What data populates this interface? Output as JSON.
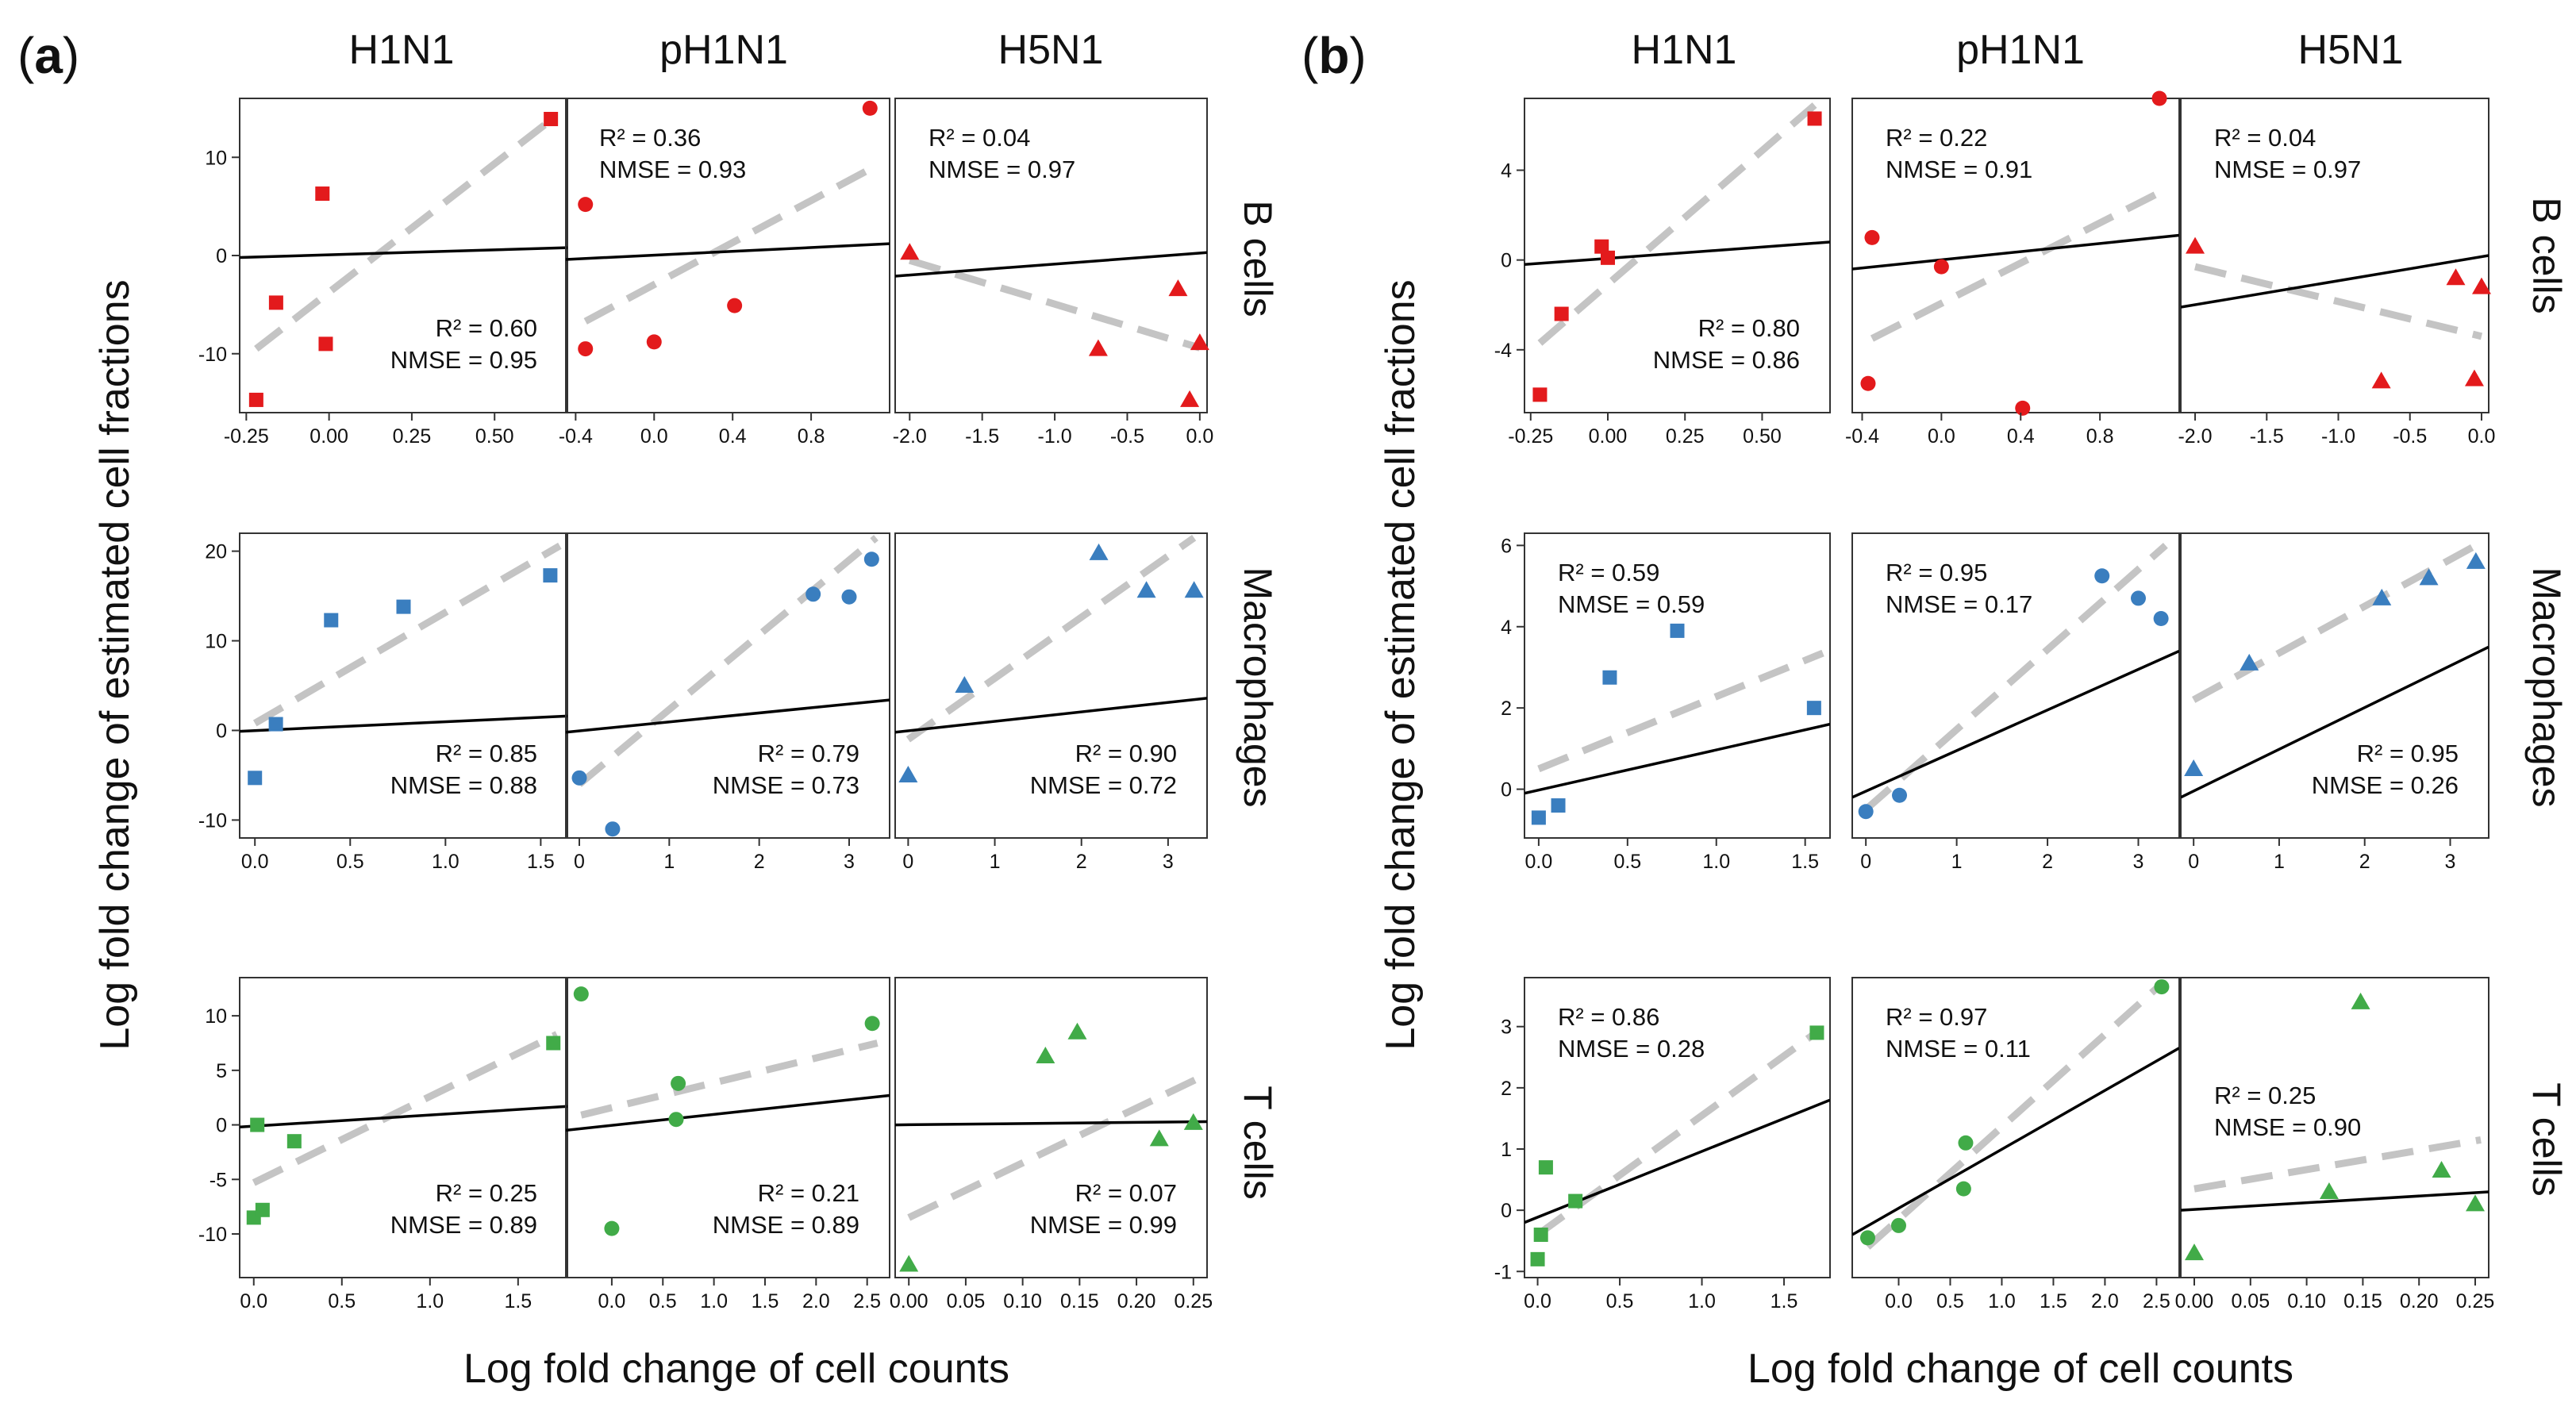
{
  "figure": {
    "panels": [
      {
        "label_open": "(",
        "label_letter": "a",
        "label_close": ")"
      },
      {
        "label_open": "(",
        "label_letter": "b",
        "label_close": ")"
      }
    ],
    "column_titles": [
      "H1N1",
      "pH1N1",
      "H5N1"
    ],
    "row_titles": [
      "B cells",
      "Macrophages",
      "T cells"
    ],
    "xlabel": "Log fold change of cell counts",
    "ylabel": "Log fold change of estimated cell fractions",
    "colors": {
      "B cells": "#e31a1c",
      "Macrophages": "#3a7ebf",
      "T cells": "#41ab48"
    },
    "line_colors": {
      "fit": "#000000",
      "reference": "#c4c4c4"
    },
    "markers": {
      "H1N1": "square",
      "pH1N1": "circle",
      "H5N1": "triangle"
    }
  },
  "chart_data": [
    {
      "type": "scatter",
      "panel": "a",
      "col": 0,
      "row": 0,
      "xlim": [
        -0.27,
        0.72
      ],
      "ylim": [
        -16,
        16
      ],
      "xticks": [
        -0.25,
        0,
        0.25,
        0.5
      ],
      "xtick_labels": [
        "-0.25",
        "0.00",
        "0.25",
        "0.50"
      ],
      "yticks": [
        -10,
        0,
        10
      ],
      "ytick_labels": [
        "-10",
        "0",
        "10"
      ],
      "points": [
        [
          -0.22,
          -14.7
        ],
        [
          -0.16,
          -4.8
        ],
        [
          -0.02,
          6.3
        ],
        [
          -0.01,
          -9.0
        ],
        [
          0.67,
          13.9
        ]
      ],
      "fit": [
        [
          -0.27,
          -0.2
        ],
        [
          0.72,
          0.8
        ]
      ],
      "ref": [
        [
          -0.22,
          -9.5
        ],
        [
          0.67,
          13.8
        ]
      ],
      "r2": "R² = 0.60",
      "nmse": "NMSE = 0.95",
      "annot_pos": "bottom-right"
    },
    {
      "type": "scatter",
      "panel": "a",
      "col": 1,
      "row": 0,
      "xlim": [
        -0.45,
        1.2
      ],
      "ylim": [
        -16,
        16
      ],
      "xticks": [
        -0.4,
        0,
        0.4,
        0.8
      ],
      "xtick_labels": [
        "-0.4",
        "0.0",
        "0.4",
        "0.8"
      ],
      "points": [
        [
          -0.35,
          5.2
        ],
        [
          -0.35,
          -9.5
        ],
        [
          0.0,
          -8.8
        ],
        [
          0.41,
          -5.1
        ],
        [
          1.1,
          15.0
        ]
      ],
      "fit": [
        [
          -0.45,
          -0.4
        ],
        [
          1.2,
          1.2
        ]
      ],
      "ref": [
        [
          -0.35,
          -6.7
        ],
        [
          1.1,
          8.8
        ]
      ],
      "r2": "R² = 0.36",
      "nmse": "NMSE = 0.93",
      "annot_pos": "top-left"
    },
    {
      "type": "scatter",
      "panel": "a",
      "col": 2,
      "row": 0,
      "xlim": [
        -2.1,
        0.05
      ],
      "ylim": [
        -16,
        16
      ],
      "xticks": [
        -2.0,
        -1.5,
        -1.0,
        -0.5,
        0.0
      ],
      "xtick_labels": [
        "-2.0",
        "-1.5",
        "-1.0",
        "-0.5",
        "0.0"
      ],
      "points": [
        [
          -2.0,
          0.3
        ],
        [
          -0.7,
          -9.5
        ],
        [
          -0.15,
          -3.4
        ],
        [
          0.0,
          -8.9
        ],
        [
          -0.07,
          -14.7
        ]
      ],
      "fit": [
        [
          -2.1,
          -2.1
        ],
        [
          0.05,
          0.3
        ]
      ],
      "ref": [
        [
          -2.0,
          -0.5
        ],
        [
          0.0,
          -9.4
        ]
      ],
      "r2": "R² = 0.04",
      "nmse": "NMSE = 0.97",
      "annot_pos": "top-left"
    },
    {
      "type": "scatter",
      "panel": "a",
      "col": 0,
      "row": 1,
      "xlim": [
        -0.08,
        1.64
      ],
      "ylim": [
        -12,
        22
      ],
      "xticks": [
        0,
        0.5,
        1.0,
        1.5
      ],
      "xtick_labels": [
        "0.0",
        "0.5",
        "1.0",
        "1.5"
      ],
      "yticks": [
        -10,
        0,
        10,
        20
      ],
      "ytick_labels": [
        "-10",
        "0",
        "10",
        "20"
      ],
      "points": [
        [
          0.0,
          -5.3
        ],
        [
          0.11,
          0.7
        ],
        [
          0.4,
          12.3
        ],
        [
          0.78,
          13.8
        ],
        [
          1.55,
          17.3
        ]
      ],
      "fit": [
        [
          -0.08,
          -0.1
        ],
        [
          1.64,
          1.6
        ]
      ],
      "ref": [
        [
          0.0,
          0.8
        ],
        [
          1.6,
          20.6
        ]
      ],
      "r2": "R² = 0.85",
      "nmse": "NMSE = 0.88",
      "annot_pos": "bottom-right"
    },
    {
      "type": "scatter",
      "panel": "a",
      "col": 1,
      "row": 1,
      "xlim": [
        -0.15,
        3.45
      ],
      "ylim": [
        -12,
        22
      ],
      "xticks": [
        0,
        1,
        2,
        3
      ],
      "xtick_labels": [
        "0",
        "1",
        "2",
        "3"
      ],
      "points": [
        [
          0.0,
          -5.3
        ],
        [
          0.37,
          -11.0
        ],
        [
          2.6,
          15.2
        ],
        [
          3.0,
          14.9
        ],
        [
          3.25,
          19.1
        ]
      ],
      "fit": [
        [
          -0.15,
          -0.2
        ],
        [
          3.45,
          3.4
        ]
      ],
      "ref": [
        [
          0.0,
          -6.0
        ],
        [
          3.3,
          21.5
        ]
      ],
      "r2": "R² = 0.79",
      "nmse": "NMSE = 0.73",
      "annot_pos": "bottom-right"
    },
    {
      "type": "scatter",
      "panel": "a",
      "col": 2,
      "row": 1,
      "xlim": [
        -0.15,
        3.45
      ],
      "ylim": [
        -12,
        22
      ],
      "xticks": [
        0,
        1,
        2,
        3
      ],
      "xtick_labels": [
        "0",
        "1",
        "2",
        "3"
      ],
      "points": [
        [
          0.0,
          -5.0
        ],
        [
          0.65,
          5.0
        ],
        [
          2.2,
          19.8
        ],
        [
          2.75,
          15.6
        ],
        [
          3.3,
          15.6
        ]
      ],
      "fit": [
        [
          -0.15,
          -0.2
        ],
        [
          3.45,
          3.6
        ]
      ],
      "ref": [
        [
          0.0,
          -1.0
        ],
        [
          3.3,
          21.5
        ]
      ],
      "r2": "R² = 0.90",
      "nmse": "NMSE = 0.72",
      "annot_pos": "bottom-right"
    },
    {
      "type": "scatter",
      "panel": "a",
      "col": 0,
      "row": 2,
      "xlim": [
        -0.08,
        1.78
      ],
      "ylim": [
        -14,
        13.5
      ],
      "xticks": [
        0,
        0.5,
        1.0,
        1.5
      ],
      "xtick_labels": [
        "0.0",
        "0.5",
        "1.0",
        "1.5"
      ],
      "yticks": [
        -10,
        -5,
        0,
        5,
        10
      ],
      "ytick_labels": [
        "-10",
        "-5",
        "0",
        "5",
        "10"
      ],
      "points": [
        [
          0.02,
          0.0
        ],
        [
          0.0,
          -8.5
        ],
        [
          0.05,
          -7.8
        ],
        [
          0.23,
          -1.5
        ],
        [
          1.7,
          7.5
        ]
      ],
      "fit": [
        [
          -0.08,
          -0.2
        ],
        [
          1.78,
          1.7
        ]
      ],
      "ref": [
        [
          0.0,
          -5.3
        ],
        [
          1.72,
          8.3
        ]
      ],
      "r2": "R² = 0.25",
      "nmse": "NMSE = 0.89",
      "annot_pos": "bottom-right"
    },
    {
      "type": "scatter",
      "panel": "a",
      "col": 1,
      "row": 2,
      "xlim": [
        -0.45,
        2.72
      ],
      "ylim": [
        -14,
        13.5
      ],
      "xticks": [
        0,
        0.5,
        1.0,
        1.5,
        2.0,
        2.5
      ],
      "xtick_labels": [
        "0.0",
        "0.5",
        "1.0",
        "1.5",
        "2.0",
        "2.5"
      ],
      "points": [
        [
          -0.3,
          12.0
        ],
        [
          0.0,
          -9.5
        ],
        [
          0.65,
          3.8
        ],
        [
          0.63,
          0.5
        ],
        [
          2.55,
          9.3
        ]
      ],
      "fit": [
        [
          -0.45,
          -0.5
        ],
        [
          2.72,
          2.7
        ]
      ],
      "ref": [
        [
          -0.3,
          0.9
        ],
        [
          2.6,
          7.5
        ]
      ],
      "r2": "R² = 0.21",
      "nmse": "NMSE = 0.89",
      "annot_pos": "bottom-right"
    },
    {
      "type": "scatter",
      "panel": "a",
      "col": 2,
      "row": 2,
      "xlim": [
        -0.012,
        0.262
      ],
      "ylim": [
        -14,
        13.5
      ],
      "xticks": [
        0.0,
        0.05,
        0.1,
        0.15,
        0.2,
        0.25
      ],
      "xtick_labels": [
        "0.00",
        "0.05",
        "0.10",
        "0.15",
        "0.20",
        "0.25"
      ],
      "points": [
        [
          0.0,
          -12.8
        ],
        [
          0.12,
          6.3
        ],
        [
          0.148,
          8.5
        ],
        [
          0.22,
          -1.3
        ],
        [
          0.25,
          0.2
        ]
      ],
      "fit": [
        [
          -0.012,
          0.0
        ],
        [
          0.262,
          0.3
        ]
      ],
      "ref": [
        [
          0.0,
          -8.5
        ],
        [
          0.255,
          4.3
        ]
      ],
      "r2": "R² = 0.07",
      "nmse": "NMSE = 0.99",
      "annot_pos": "bottom-right"
    },
    {
      "type": "scatter",
      "panel": "b",
      "col": 0,
      "row": 0,
      "xlim": [
        -0.27,
        0.72
      ],
      "ylim": [
        -6.8,
        7.2
      ],
      "xticks": [
        -0.25,
        0,
        0.25,
        0.5
      ],
      "xtick_labels": [
        "-0.25",
        "0.00",
        "0.25",
        "0.50"
      ],
      "yticks": [
        -4,
        0,
        4
      ],
      "ytick_labels": [
        "-4",
        "0",
        "4"
      ],
      "points": [
        [
          -0.22,
          -6.0
        ],
        [
          -0.15,
          -2.4
        ],
        [
          -0.02,
          0.6
        ],
        [
          0.0,
          0.1
        ],
        [
          0.67,
          6.3
        ]
      ],
      "fit": [
        [
          -0.27,
          -0.2
        ],
        [
          0.72,
          0.8
        ]
      ],
      "ref": [
        [
          -0.22,
          -3.7
        ],
        [
          0.67,
          6.9
        ]
      ],
      "r2": "R² = 0.80",
      "nmse": "NMSE = 0.86",
      "annot_pos": "bottom-right"
    },
    {
      "type": "scatter",
      "panel": "b",
      "col": 1,
      "row": 0,
      "xlim": [
        -0.45,
        1.2
      ],
      "ylim": [
        -6.8,
        7.2
      ],
      "xticks": [
        -0.4,
        0,
        0.4,
        0.8
      ],
      "xtick_labels": [
        "-0.4",
        "0.0",
        "0.4",
        "0.8"
      ],
      "points": [
        [
          -0.35,
          1.0
        ],
        [
          -0.37,
          -5.5
        ],
        [
          0.0,
          -0.3
        ],
        [
          0.41,
          -6.6
        ],
        [
          1.1,
          7.2
        ]
      ],
      "fit": [
        [
          -0.45,
          -0.4
        ],
        [
          1.2,
          1.1
        ]
      ],
      "ref": [
        [
          -0.35,
          -3.5
        ],
        [
          1.1,
          3.0
        ]
      ],
      "r2": "R² = 0.22",
      "nmse": "NMSE = 0.91",
      "annot_pos": "top-left"
    },
    {
      "type": "scatter",
      "panel": "b",
      "col": 2,
      "row": 0,
      "xlim": [
        -2.1,
        0.05
      ],
      "ylim": [
        -6.8,
        7.2
      ],
      "xticks": [
        -2.0,
        -1.5,
        -1.0,
        -0.5,
        0.0
      ],
      "xtick_labels": [
        "-2.0",
        "-1.5",
        "-1.0",
        "-0.5",
        "0.0"
      ],
      "points": [
        [
          -2.0,
          0.6
        ],
        [
          -0.7,
          -5.4
        ],
        [
          -0.18,
          -0.8
        ],
        [
          -0.05,
          -5.3
        ],
        [
          0.0,
          -1.2
        ]
      ],
      "fit": [
        [
          -2.1,
          -2.1
        ],
        [
          0.05,
          0.2
        ]
      ],
      "ref": [
        [
          -2.0,
          -0.3
        ],
        [
          0.0,
          -3.4
        ]
      ],
      "r2": "R² = 0.04",
      "nmse": "NMSE = 0.97",
      "annot_pos": "top-left"
    },
    {
      "type": "scatter",
      "panel": "b",
      "col": 0,
      "row": 1,
      "xlim": [
        -0.08,
        1.64
      ],
      "ylim": [
        -1.2,
        6.3
      ],
      "xticks": [
        0,
        0.5,
        1.0,
        1.5
      ],
      "xtick_labels": [
        "0.0",
        "0.5",
        "1.0",
        "1.5"
      ],
      "yticks": [
        0,
        2,
        4,
        6
      ],
      "ytick_labels": [
        "0",
        "2",
        "4",
        "6"
      ],
      "points": [
        [
          0.0,
          -0.7
        ],
        [
          0.11,
          -0.4
        ],
        [
          0.4,
          2.75
        ],
        [
          0.78,
          3.9
        ],
        [
          1.55,
          2.0
        ]
      ],
      "fit": [
        [
          -0.08,
          -0.1
        ],
        [
          1.64,
          1.6
        ]
      ],
      "ref": [
        [
          0.0,
          0.5
        ],
        [
          1.6,
          3.35
        ]
      ],
      "r2": "R² = 0.59",
      "nmse": "NMSE = 0.59",
      "annot_pos": "top-left"
    },
    {
      "type": "scatter",
      "panel": "b",
      "col": 1,
      "row": 1,
      "xlim": [
        -0.15,
        3.45
      ],
      "ylim": [
        -1.2,
        6.3
      ],
      "xticks": [
        0,
        1,
        2,
        3
      ],
      "xtick_labels": [
        "0",
        "1",
        "2",
        "3"
      ],
      "points": [
        [
          0.0,
          -0.55
        ],
        [
          0.37,
          -0.15
        ],
        [
          2.6,
          5.25
        ],
        [
          3.0,
          4.7
        ],
        [
          3.25,
          4.2
        ]
      ],
      "fit": [
        [
          -0.15,
          -0.2
        ],
        [
          3.45,
          3.4
        ]
      ],
      "ref": [
        [
          0.0,
          -0.5
        ],
        [
          3.3,
          6.0
        ]
      ],
      "r2": "R² = 0.95",
      "nmse": "NMSE = 0.17",
      "annot_pos": "top-left"
    },
    {
      "type": "scatter",
      "panel": "b",
      "col": 2,
      "row": 1,
      "xlim": [
        -0.15,
        3.45
      ],
      "ylim": [
        -1.2,
        6.3
      ],
      "xticks": [
        0,
        1,
        2,
        3
      ],
      "xtick_labels": [
        "0",
        "1",
        "2",
        "3"
      ],
      "points": [
        [
          0.0,
          0.5
        ],
        [
          0.65,
          3.1
        ],
        [
          2.2,
          4.7
        ],
        [
          2.75,
          5.2
        ],
        [
          3.3,
          5.6
        ]
      ],
      "fit": [
        [
          -0.15,
          -0.2
        ],
        [
          3.45,
          3.5
        ]
      ],
      "ref": [
        [
          0.0,
          2.2
        ],
        [
          3.3,
          6.0
        ]
      ],
      "r2": "R² = 0.95",
      "nmse": "NMSE = 0.26",
      "annot_pos": "bottom-right"
    },
    {
      "type": "scatter",
      "panel": "b",
      "col": 0,
      "row": 2,
      "xlim": [
        -0.08,
        1.78
      ],
      "ylim": [
        -1.1,
        3.8
      ],
      "xticks": [
        0,
        0.5,
        1.0,
        1.5
      ],
      "xtick_labels": [
        "0.0",
        "0.5",
        "1.0",
        "1.5"
      ],
      "yticks": [
        -1,
        0,
        1,
        2,
        3
      ],
      "ytick_labels": [
        "-1",
        "0",
        "1",
        "2",
        "3"
      ],
      "points": [
        [
          0.02,
          -0.4
        ],
        [
          0.0,
          -0.8
        ],
        [
          0.05,
          0.7
        ],
        [
          0.23,
          0.15
        ],
        [
          1.7,
          2.9
        ]
      ],
      "fit": [
        [
          -0.08,
          -0.2
        ],
        [
          1.78,
          1.8
        ]
      ],
      "ref": [
        [
          0.0,
          -0.4
        ],
        [
          1.72,
          2.95
        ]
      ],
      "r2": "R² = 0.86",
      "nmse": "NMSE = 0.28",
      "annot_pos": "top-left"
    },
    {
      "type": "scatter",
      "panel": "b",
      "col": 1,
      "row": 2,
      "xlim": [
        -0.45,
        2.72
      ],
      "ylim": [
        -1.1,
        3.8
      ],
      "xticks": [
        0,
        0.5,
        1.0,
        1.5,
        2.0,
        2.5
      ],
      "xtick_labels": [
        "0.0",
        "0.5",
        "1.0",
        "1.5",
        "2.0",
        "2.5"
      ],
      "points": [
        [
          -0.3,
          -0.45
        ],
        [
          0.0,
          -0.25
        ],
        [
          0.65,
          1.1
        ],
        [
          0.63,
          0.35
        ],
        [
          2.55,
          3.65
        ]
      ],
      "fit": [
        [
          -0.45,
          -0.4
        ],
        [
          2.72,
          2.65
        ]
      ],
      "ref": [
        [
          -0.3,
          -0.6
        ],
        [
          2.55,
          3.7
        ]
      ],
      "r2": "R² = 0.97",
      "nmse": "NMSE = 0.11",
      "annot_pos": "top-left"
    },
    {
      "type": "scatter",
      "panel": "b",
      "col": 2,
      "row": 2,
      "xlim": [
        -0.012,
        0.262
      ],
      "ylim": [
        -1.1,
        3.8
      ],
      "xticks": [
        0.0,
        0.05,
        0.1,
        0.15,
        0.2,
        0.25
      ],
      "xtick_labels": [
        "0.00",
        "0.05",
        "0.10",
        "0.15",
        "0.20",
        "0.25"
      ],
      "points": [
        [
          0.0,
          -0.7
        ],
        [
          0.12,
          0.3
        ],
        [
          0.148,
          3.4
        ],
        [
          0.22,
          0.65
        ],
        [
          0.25,
          0.1
        ]
      ],
      "fit": [
        [
          -0.012,
          0.0
        ],
        [
          0.262,
          0.3
        ]
      ],
      "ref": [
        [
          0.0,
          0.35
        ],
        [
          0.255,
          1.15
        ]
      ],
      "r2": "R² = 0.25",
      "nmse": "NMSE = 0.90",
      "annot_pos": "middle-left"
    }
  ]
}
